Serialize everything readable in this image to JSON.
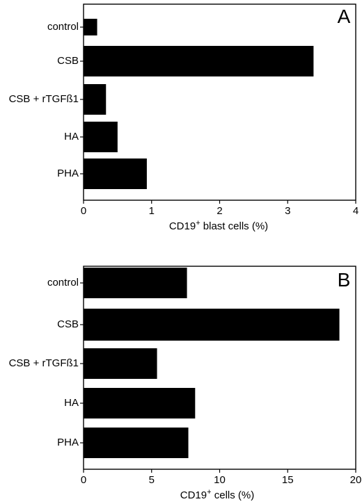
{
  "chart_data": [
    {
      "type": "bar",
      "orientation": "horizontal",
      "panel_label": "A",
      "categories": [
        "control",
        "CSB",
        "CSB + rTGFß1",
        "HA",
        "PHA"
      ],
      "values": [
        0.2,
        3.38,
        0.33,
        0.5,
        0.93
      ],
      "xlim": [
        0,
        4
      ],
      "xticks": [
        "0",
        "1",
        "2",
        "3",
        "4"
      ],
      "xlabel": {
        "main": "CD19",
        "sup": "+",
        "rest": " blast cells (%)"
      },
      "grid": false,
      "bar_color": "#000000"
    },
    {
      "type": "bar",
      "orientation": "horizontal",
      "panel_label": "B",
      "categories": [
        "control",
        "CSB",
        "CSB + rTGFß1",
        "HA",
        "PHA"
      ],
      "values": [
        7.6,
        18.8,
        5.4,
        8.2,
        7.7
      ],
      "xlim": [
        0,
        20
      ],
      "xticks": [
        "0",
        "5",
        "10",
        "15",
        "20"
      ],
      "xlabel": {
        "main": "CD19",
        "sup": "+",
        "rest": " cells (%)"
      },
      "grid": false,
      "bar_color": "#000000"
    }
  ]
}
